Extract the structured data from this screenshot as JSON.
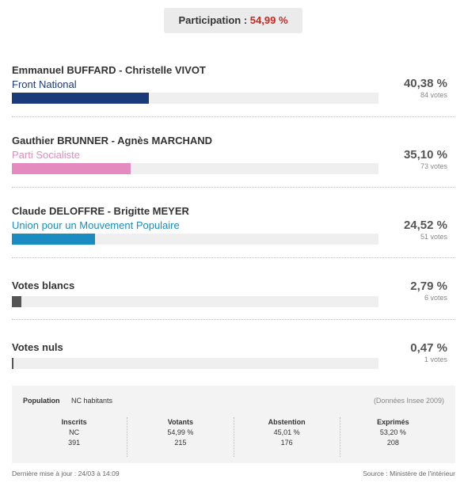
{
  "participation": {
    "label": "Participation : ",
    "value": "54,99 %"
  },
  "candidates": [
    {
      "name": "Emmanuel BUFFARD - Christelle VIVOT",
      "party": "Front National",
      "party_color": "#1f3a78",
      "bar_color": "#1b3a7a",
      "percent": "40,38 %",
      "votes": "84 votes",
      "share": 0.4038
    },
    {
      "name": "Gauthier BRUNNER - Agnès MARCHAND",
      "party": "Parti Socialiste",
      "party_color": "#e58ac0",
      "bar_color": "#e58ac0",
      "percent": "35,10 %",
      "votes": "73 votes",
      "share": 0.351
    },
    {
      "name": "Claude DELOFFRE - Brigitte MEYER",
      "party": "Union pour un Mouvement Populaire",
      "party_color": "#1b8cc0",
      "bar_color": "#1b8cc0",
      "percent": "24,52 %",
      "votes": "51 votes",
      "share": 0.2452
    },
    {
      "name": "Votes blancs",
      "party": "",
      "party_color": "#333333",
      "bar_color": "#555555",
      "percent": "2,79 %",
      "votes": "6 votes",
      "share": 0.0279
    },
    {
      "name": "Votes nuls",
      "party": "",
      "party_color": "#333333",
      "bar_color": "#555555",
      "percent": "0,47 %",
      "votes": "1 votes",
      "share": 0.0047
    }
  ],
  "stats": {
    "population_label": "Population",
    "population_value": "NC habitants",
    "insee_note": "(Données Insee 2009)",
    "columns": [
      {
        "header": "Inscrits",
        "line1": "NC",
        "line2": "391"
      },
      {
        "header": "Votants",
        "line1": "54,99 %",
        "line2": "215"
      },
      {
        "header": "Abstention",
        "line1": "45,01 %",
        "line2": "176"
      },
      {
        "header": "Exprimés",
        "line1": "53,20 %",
        "line2": "208"
      }
    ]
  },
  "footer": {
    "updated": "Dernière mise à jour : 24/03 à 14:09",
    "source": "Source : Ministère de l'intérieur"
  }
}
